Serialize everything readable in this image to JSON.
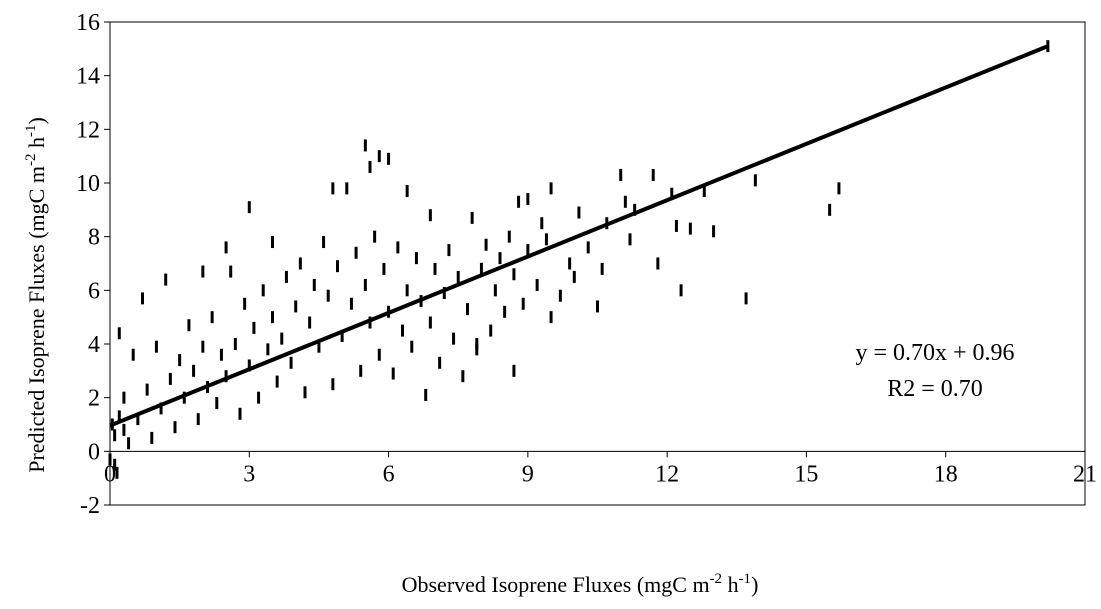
{
  "chart_data": {
    "type": "scatter",
    "title": "",
    "xlabel": {
      "main": "Observed Isoprene Fluxes (mgC m",
      "sup1": "-2",
      "mid": " h",
      "sup2": "-1",
      "end": ")"
    },
    "ylabel": {
      "main": "Predicted Isoprene Fluxes (mgC m",
      "sup1": "-2",
      "mid": " h",
      "sup2": "-1",
      "end": ")"
    },
    "xlim": [
      0,
      21
    ],
    "ylim": [
      -2,
      16
    ],
    "xticks": [
      "0",
      "3",
      "6",
      "9",
      "12",
      "15",
      "18",
      "21"
    ],
    "yticks": [
      "-2",
      "0",
      "2",
      "4",
      "6",
      "8",
      "10",
      "12",
      "14",
      "16"
    ],
    "grid": false,
    "marker": "vertical-dash",
    "marker_color": "#000000",
    "trendline": {
      "slope": 0.7,
      "intercept": 0.96,
      "x_range": [
        0,
        20.2
      ]
    },
    "annotations": {
      "equation": "y = 0.70x + 0.96",
      "r2": "R2 = 0.70"
    },
    "series": [
      {
        "points": [
          [
            20.2,
            15.1
          ],
          [
            15.7,
            9.8
          ],
          [
            15.5,
            9.0
          ],
          [
            13.9,
            10.1
          ],
          [
            13.7,
            5.7
          ],
          [
            13.0,
            8.2
          ],
          [
            12.8,
            9.7
          ],
          [
            12.5,
            8.3
          ],
          [
            12.3,
            6.0
          ],
          [
            12.2,
            8.4
          ],
          [
            12.1,
            9.6
          ],
          [
            11.8,
            7.0
          ],
          [
            11.7,
            10.3
          ],
          [
            11.3,
            9.0
          ],
          [
            11.2,
            7.9
          ],
          [
            11.1,
            9.3
          ],
          [
            11.0,
            10.3
          ],
          [
            10.7,
            8.5
          ],
          [
            10.6,
            6.8
          ],
          [
            10.5,
            5.4
          ],
          [
            10.3,
            7.6
          ],
          [
            10.1,
            8.9
          ],
          [
            10.0,
            6.5
          ],
          [
            9.9,
            7.0
          ],
          [
            9.7,
            5.8
          ],
          [
            9.5,
            9.8
          ],
          [
            9.5,
            5.0
          ],
          [
            9.4,
            7.9
          ],
          [
            9.3,
            8.5
          ],
          [
            9.2,
            6.2
          ],
          [
            9.0,
            9.4
          ],
          [
            9.0,
            7.5
          ],
          [
            8.9,
            5.5
          ],
          [
            8.8,
            9.3
          ],
          [
            8.7,
            3.0
          ],
          [
            8.7,
            6.6
          ],
          [
            8.6,
            8.0
          ],
          [
            8.5,
            5.2
          ],
          [
            8.4,
            7.2
          ],
          [
            8.3,
            6.0
          ],
          [
            8.2,
            4.5
          ],
          [
            8.1,
            7.7
          ],
          [
            8.0,
            6.8
          ],
          [
            7.9,
            4.0
          ],
          [
            7.9,
            3.8
          ],
          [
            7.8,
            8.7
          ],
          [
            7.7,
            5.3
          ],
          [
            7.6,
            2.8
          ],
          [
            7.5,
            6.5
          ],
          [
            7.4,
            4.2
          ],
          [
            7.3,
            7.5
          ],
          [
            7.2,
            5.9
          ],
          [
            7.1,
            3.3
          ],
          [
            7.0,
            6.8
          ],
          [
            6.9,
            8.8
          ],
          [
            6.9,
            4.8
          ],
          [
            6.8,
            2.1
          ],
          [
            6.7,
            5.6
          ],
          [
            6.6,
            7.2
          ],
          [
            6.5,
            3.9
          ],
          [
            6.4,
            9.7
          ],
          [
            6.4,
            6.0
          ],
          [
            6.3,
            4.5
          ],
          [
            6.2,
            7.6
          ],
          [
            6.1,
            2.9
          ],
          [
            6.0,
            10.9
          ],
          [
            6.0,
            5.2
          ],
          [
            5.9,
            6.8
          ],
          [
            5.8,
            3.6
          ],
          [
            5.8,
            11.0
          ],
          [
            5.7,
            8.0
          ],
          [
            5.6,
            4.8
          ],
          [
            5.6,
            10.6
          ],
          [
            5.5,
            11.4
          ],
          [
            5.5,
            6.2
          ],
          [
            5.4,
            3.0
          ],
          [
            5.3,
            7.4
          ],
          [
            5.2,
            5.5
          ],
          [
            5.1,
            9.8
          ],
          [
            5.0,
            4.3
          ],
          [
            4.9,
            6.9
          ],
          [
            4.8,
            2.5
          ],
          [
            4.8,
            9.8
          ],
          [
            4.7,
            5.8
          ],
          [
            4.6,
            7.8
          ],
          [
            4.5,
            3.9
          ],
          [
            4.4,
            6.2
          ],
          [
            4.3,
            4.8
          ],
          [
            4.2,
            2.2
          ],
          [
            4.1,
            7.0
          ],
          [
            4.0,
            5.4
          ],
          [
            3.9,
            3.3
          ],
          [
            3.8,
            6.5
          ],
          [
            3.7,
            4.2
          ],
          [
            3.6,
            2.6
          ],
          [
            3.5,
            7.8
          ],
          [
            3.5,
            5.0
          ],
          [
            3.4,
            3.8
          ],
          [
            3.3,
            6.0
          ],
          [
            3.2,
            2.0
          ],
          [
            3.1,
            4.6
          ],
          [
            3.0,
            9.1
          ],
          [
            3.0,
            3.2
          ],
          [
            2.9,
            5.5
          ],
          [
            2.8,
            1.4
          ],
          [
            2.7,
            4.0
          ],
          [
            2.6,
            6.7
          ],
          [
            2.5,
            2.8
          ],
          [
            2.5,
            7.6
          ],
          [
            2.4,
            3.6
          ],
          [
            2.3,
            1.8
          ],
          [
            2.2,
            5.0
          ],
          [
            2.1,
            2.4
          ],
          [
            2.0,
            3.9
          ],
          [
            2.0,
            6.7
          ],
          [
            1.9,
            1.2
          ],
          [
            1.8,
            3.0
          ],
          [
            1.7,
            4.7
          ],
          [
            1.6,
            2.0
          ],
          [
            1.5,
            3.4
          ],
          [
            1.4,
            0.9
          ],
          [
            1.3,
            2.7
          ],
          [
            1.2,
            6.4
          ],
          [
            1.1,
            1.6
          ],
          [
            1.0,
            3.9
          ],
          [
            0.9,
            0.5
          ],
          [
            0.8,
            2.3
          ],
          [
            0.7,
            5.7
          ],
          [
            0.6,
            1.2
          ],
          [
            0.5,
            3.6
          ],
          [
            0.4,
            0.3
          ],
          [
            0.3,
            2.0
          ],
          [
            0.2,
            4.4
          ],
          [
            0.1,
            -0.5
          ],
          [
            0.05,
            1.0
          ],
          [
            0.0,
            -0.3
          ],
          [
            0.1,
            0.6
          ],
          [
            0.2,
            1.3
          ],
          [
            0.3,
            0.8
          ],
          [
            0.15,
            -0.8
          ]
        ]
      }
    ]
  }
}
